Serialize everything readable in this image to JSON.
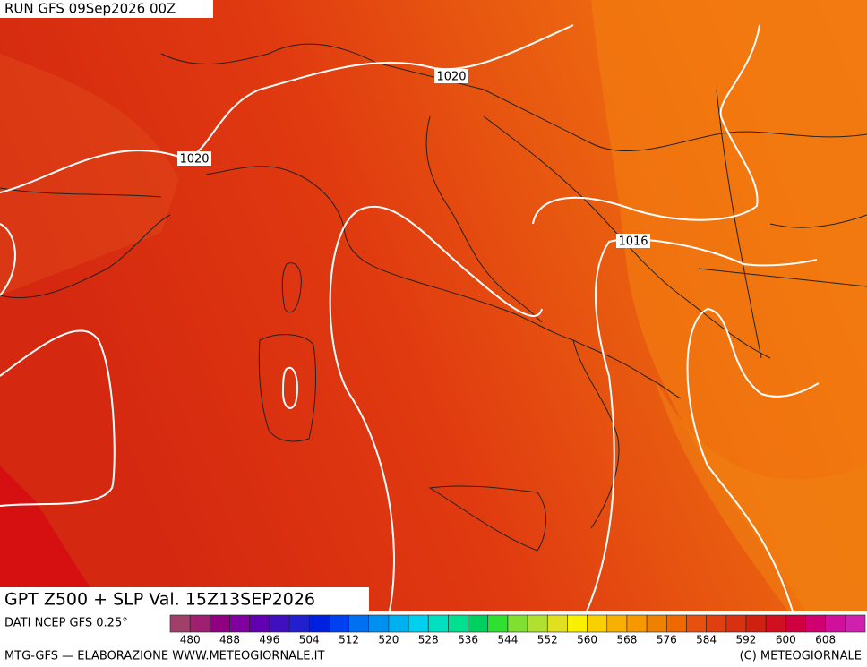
{
  "header": {
    "run": "RUN GFS 09Sep2026 00Z"
  },
  "title": "GPT Z500 + SLP Val. 15Z13SEP2026",
  "source": "DATI NCEP GFS 0.25°",
  "isobar_labels": [
    "1020",
    "1020",
    "1016"
  ],
  "colorbar": {
    "colors": [
      "#a0406a",
      "#a02070",
      "#900080",
      "#8000a0",
      "#6000b0",
      "#4010c0",
      "#2020d0",
      "#0020e0",
      "#0040f0",
      "#0070f0",
      "#0090f0",
      "#00b0f0",
      "#00d0f0",
      "#00e0c0",
      "#00e090",
      "#00d060",
      "#30e030",
      "#80e030",
      "#b0e030",
      "#e0e020",
      "#f8f000",
      "#f8d000",
      "#f8b000",
      "#f89800",
      "#f08000",
      "#f06800",
      "#e85010",
      "#e04010",
      "#d83010",
      "#d02010",
      "#d01020",
      "#d00040",
      "#d00070",
      "#d0109a",
      "#d020b0"
    ],
    "labels": [
      480,
      488,
      496,
      504,
      512,
      520,
      528,
      536,
      544,
      552,
      560,
      568,
      576,
      584,
      592,
      600,
      608
    ]
  },
  "footer": {
    "left": "MTG-GFS — ELABORAZIONE WWW.METEOGIORNALE.IT",
    "right": "(C) METEOGIORNALE"
  }
}
